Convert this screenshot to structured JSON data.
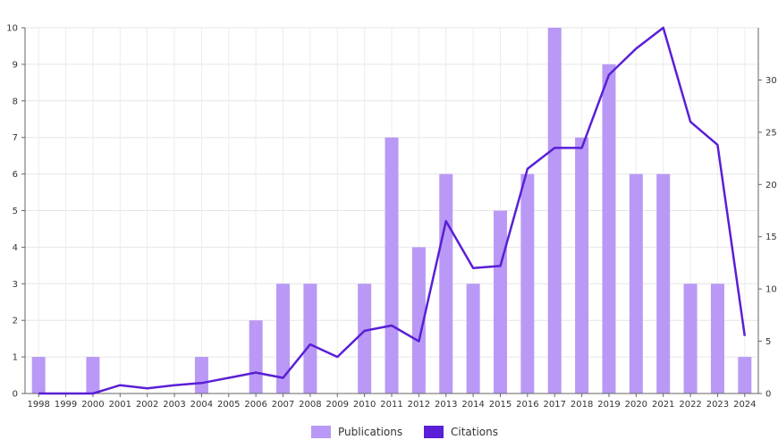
{
  "chart_data": {
    "type": "bar",
    "categories": [
      "1998",
      "1999",
      "2000",
      "2001",
      "2002",
      "2003",
      "2004",
      "2005",
      "2006",
      "2007",
      "2008",
      "2009",
      "2010",
      "2011",
      "2012",
      "2013",
      "2014",
      "2015",
      "2016",
      "2017",
      "2018",
      "2019",
      "2020",
      "2021",
      "2022",
      "2023",
      "2024"
    ],
    "series": [
      {
        "name": "Publications",
        "type": "bar",
        "axis": "left",
        "color": "#b999f5",
        "values": [
          1,
          0,
          1,
          0,
          0,
          0,
          1,
          0,
          2,
          3,
          3,
          0,
          3,
          7,
          4,
          6,
          3,
          5,
          6,
          10,
          7,
          9,
          6,
          6,
          3,
          3,
          1
        ]
      },
      {
        "name": "Citations",
        "type": "line",
        "axis": "right",
        "color": "#5a1fd6",
        "values": [
          0,
          0,
          0,
          0.8,
          0.5,
          0.8,
          1,
          1.5,
          2,
          1.5,
          4.7,
          3.5,
          6,
          6.5,
          5,
          16.5,
          12,
          12.2,
          21.5,
          23.5,
          23.5,
          30.5,
          33,
          35,
          26,
          23.8,
          5.5
        ]
      }
    ],
    "y_left": {
      "min": 0,
      "max": 10,
      "ticks": [
        "0",
        "1",
        "2",
        "3",
        "4",
        "5",
        "6",
        "7",
        "8",
        "9",
        "10"
      ]
    },
    "y_right": {
      "min": 0,
      "max": 35,
      "ticks": [
        "0",
        "5",
        "10",
        "15",
        "20",
        "25",
        "30"
      ]
    },
    "grid": true,
    "legend": {
      "position": "bottom",
      "items": [
        {
          "label": "Publications",
          "color": "#b999f5"
        },
        {
          "label": "Citations",
          "color": "#5a1fd6"
        }
      ]
    }
  }
}
